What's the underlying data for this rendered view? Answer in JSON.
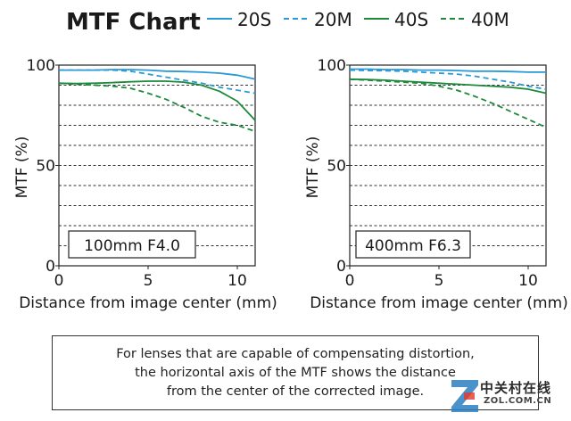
{
  "chart_data": {
    "type": "line",
    "title": "MTF Chart",
    "legend": {
      "placement": "top-right",
      "entries": [
        {
          "name": "20S",
          "color": "#2a9ad6",
          "style": "solid"
        },
        {
          "name": "20M",
          "color": "#2a9ad6",
          "style": "dashed"
        },
        {
          "name": "40S",
          "color": "#1c8a3a",
          "style": "solid"
        },
        {
          "name": "40M",
          "color": "#1c8a3a",
          "style": "dashed"
        }
      ]
    },
    "panels": [
      {
        "label": "100mm F4.0",
        "xlabel": "Distance from image center (mm)",
        "ylabel": "MTF (%)",
        "xlim": [
          0,
          11
        ],
        "ylim": [
          0,
          100
        ],
        "xticks": [
          "0",
          "5",
          "10"
        ],
        "yticks": [
          "0",
          "50",
          "100"
        ],
        "grid": "dashed horizontal every 10",
        "series": [
          {
            "name": "20S",
            "x": [
              0,
              1,
              2,
              3,
              4,
              5,
              6,
              7,
              8,
              9,
              10,
              11
            ],
            "y": [
              97.5,
              97.5,
              97.5,
              97.8,
              97.8,
              97.5,
              97,
              96.8,
              96.5,
              96,
              95,
              93
            ]
          },
          {
            "name": "20M",
            "x": [
              0,
              1,
              2,
              3,
              4,
              5,
              6,
              7,
              8,
              9,
              10,
              11
            ],
            "y": [
              97.5,
              97.5,
              97.5,
              97.5,
              97,
              95.5,
              94,
              92.5,
              91,
              89,
              87.5,
              86
            ]
          },
          {
            "name": "40S",
            "x": [
              0,
              1,
              2,
              3,
              4,
              5,
              6,
              7,
              8,
              9,
              10,
              11
            ],
            "y": [
              91,
              90.8,
              91,
              91.3,
              91.7,
              92,
              92,
              91.5,
              90,
              87,
              82,
              72.5
            ]
          },
          {
            "name": "40M",
            "x": [
              0,
              1,
              2,
              3,
              4,
              5,
              6,
              7,
              8,
              9,
              10,
              11
            ],
            "y": [
              91,
              90.5,
              90,
              89.5,
              88.5,
              86,
              83,
              79,
              74.5,
              71.5,
              70,
              67
            ]
          }
        ]
      },
      {
        "label": "400mm F6.3",
        "xlabel": "Distance from image center (mm)",
        "ylabel": "MTF (%)",
        "xlim": [
          0,
          11
        ],
        "ylim": [
          0,
          100
        ],
        "xticks": [
          "0",
          "5",
          "10"
        ],
        "yticks": [
          "0",
          "50",
          "100"
        ],
        "grid": "dashed horizontal every 10",
        "series": [
          {
            "name": "20S",
            "x": [
              0,
              1,
              2,
              3,
              4,
              5,
              6,
              7,
              8,
              9,
              10,
              11
            ],
            "y": [
              98,
              98,
              97.8,
              97.8,
              97.5,
              97.5,
              97.3,
              97,
              97,
              96.8,
              96.5,
              96.5
            ]
          },
          {
            "name": "20M",
            "x": [
              0,
              1,
              2,
              3,
              4,
              5,
              6,
              7,
              8,
              9,
              10,
              11
            ],
            "y": [
              97.5,
              97.3,
              97.2,
              97,
              96.5,
              96,
              95.5,
              94.5,
              93,
              91.5,
              89.5,
              88
            ]
          },
          {
            "name": "40S",
            "x": [
              0,
              1,
              2,
              3,
              4,
              5,
              6,
              7,
              8,
              9,
              10,
              11
            ],
            "y": [
              93,
              92.8,
              92.5,
              92,
              91.5,
              91,
              90.5,
              90,
              89.5,
              89,
              88,
              86
            ]
          },
          {
            "name": "40M",
            "x": [
              0,
              1,
              2,
              3,
              4,
              5,
              6,
              7,
              8,
              9,
              10,
              11
            ],
            "y": [
              93,
              92.5,
              92,
              91.5,
              91,
              89.5,
              87.5,
              84.5,
              81,
              77,
              73,
              69
            ]
          }
        ]
      }
    ]
  },
  "note": {
    "lines": [
      "For lenses that are capable of compensating distortion,",
      "the horizontal axis of the MTF shows the distance",
      "from the center of the corrected image."
    ]
  },
  "watermark": {
    "text": "中关村在线",
    "sub": "ZOL.COM.CN"
  }
}
